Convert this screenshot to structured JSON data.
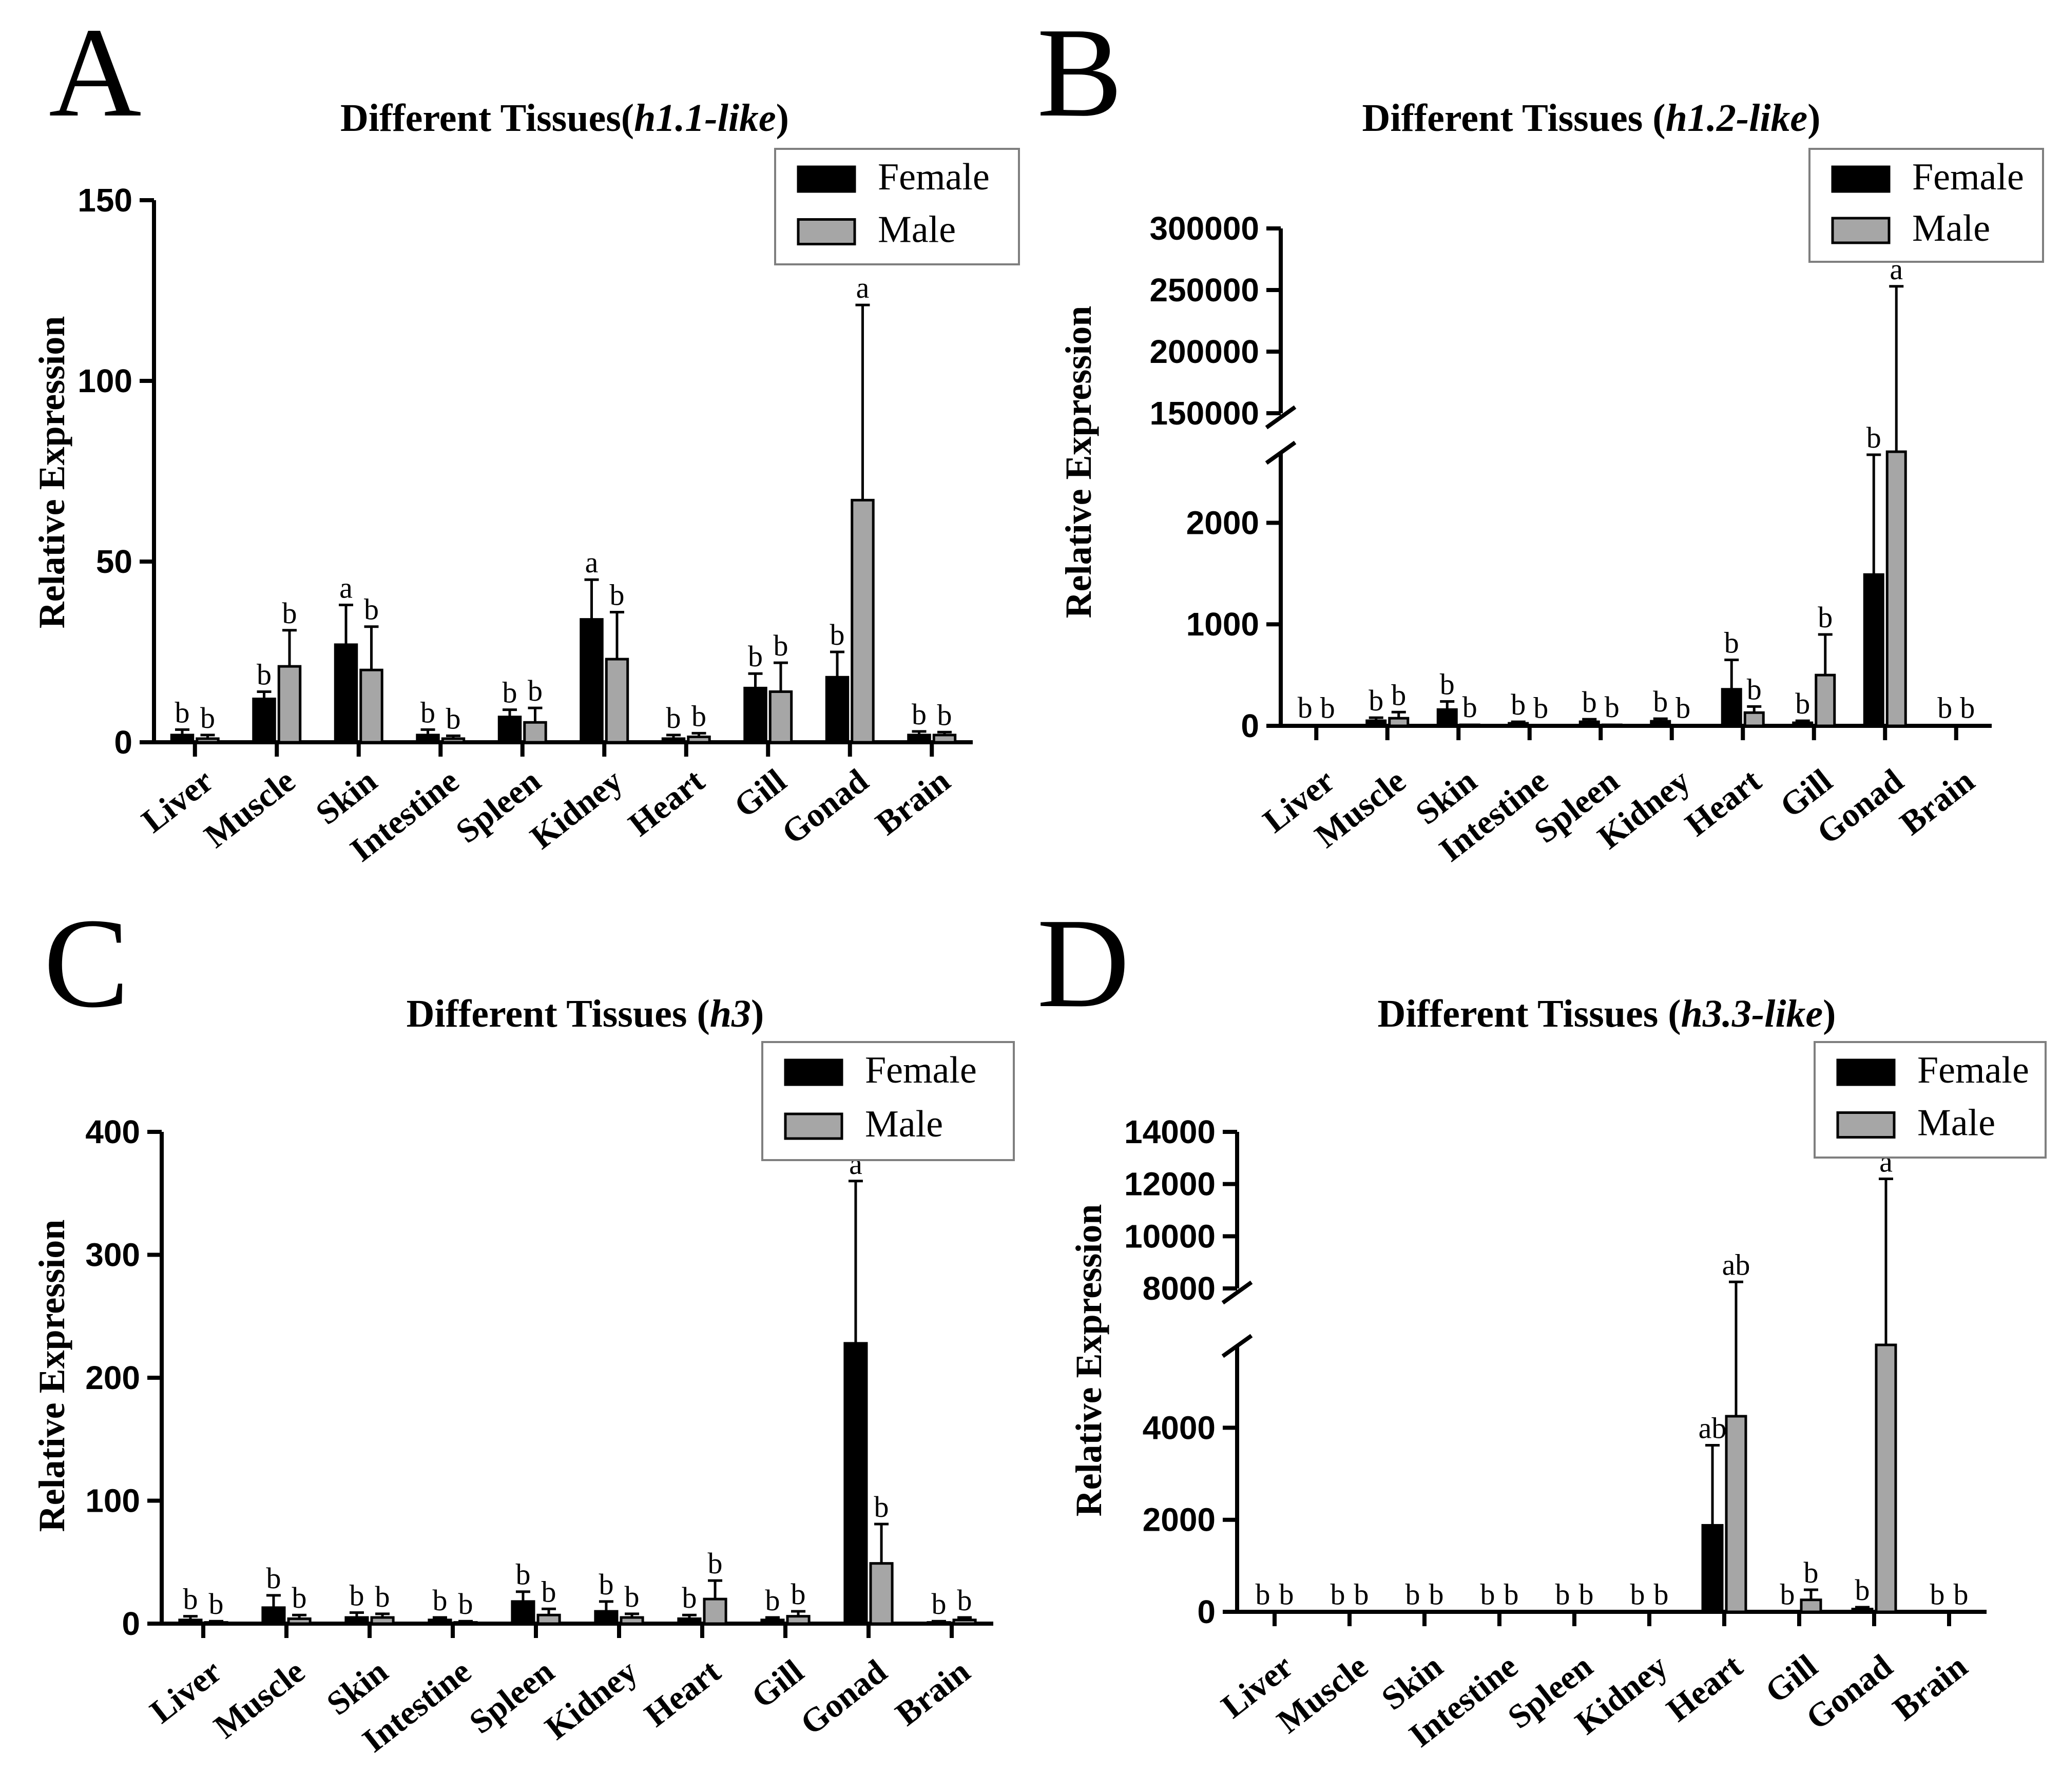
{
  "figure": {
    "categories": [
      "Liver",
      "Muscle",
      "Skin",
      "Intestine",
      "Spleen",
      "Kidney",
      "Heart",
      "Gill",
      "Gonad",
      "Brain"
    ],
    "legend": [
      "Female",
      "Male"
    ],
    "colors": {
      "female": "#000000",
      "male": "#a6a6a6",
      "axis": "#000000"
    },
    "ylabel": "Relative Expression"
  },
  "chart_data": [
    {
      "panel": "A",
      "type": "bar",
      "title_prefix": "Different Tissues(",
      "title_gene": "h1.1-like",
      "title_suffix": ")",
      "ylabel": "Relative Expression",
      "ylim": [
        0,
        150
      ],
      "yticks": [
        "0",
        "50",
        "100",
        "150"
      ],
      "categories": [
        "Liver",
        "Muscle",
        "Skin",
        "Intestine",
        "Spleen",
        "Kidney",
        "Heart",
        "Gill",
        "Gonad",
        "Brain"
      ],
      "series": [
        {
          "name": "Female",
          "values": [
            2,
            12,
            27,
            2,
            7,
            34,
            1,
            15,
            18,
            2
          ],
          "errors": [
            1.5,
            2,
            11,
            1.5,
            2,
            11,
            1,
            4,
            7,
            1
          ],
          "labels": [
            "b",
            "b",
            "a",
            "b",
            "b",
            "a",
            "b",
            "b",
            "b",
            "b"
          ]
        },
        {
          "name": "Male",
          "values": [
            1,
            21,
            20,
            1,
            5.5,
            23,
            1.5,
            14,
            67,
            2
          ],
          "errors": [
            1,
            10,
            12,
            0.8,
            4,
            13,
            1,
            8,
            54,
            0.8
          ],
          "labels": [
            "b",
            "b",
            "b",
            "b",
            "b",
            "b",
            "b",
            "b",
            "a",
            "b"
          ]
        }
      ],
      "legend_position": "top-right"
    },
    {
      "panel": "B",
      "type": "bar",
      "title_prefix": "Different Tissues (",
      "title_gene": "h1.2-like",
      "title_suffix": ")",
      "ylabel": "Relative Expression",
      "broken_axis": true,
      "ylim_lower": [
        0,
        2700
      ],
      "ylim_upper": [
        150000,
        300000
      ],
      "yticks_lower": [
        "0",
        "1000",
        "2000"
      ],
      "yticks_upper": [
        "150000",
        "200000",
        "250000",
        "300000"
      ],
      "categories": [
        "Liver",
        "Muscle",
        "Skin",
        "Intestine",
        "Spleen",
        "Kidney",
        "Heart",
        "Gill",
        "Gonad",
        "Brain"
      ],
      "series": [
        {
          "name": "Female",
          "values": [
            5,
            50,
            160,
            25,
            40,
            45,
            360,
            30,
            1490,
            5
          ],
          "errors": [
            5,
            30,
            80,
            15,
            25,
            25,
            290,
            20,
            1180,
            3
          ],
          "labels": [
            "b",
            "b",
            "b",
            "b",
            "b",
            "b",
            "b",
            "b",
            "b",
            "b"
          ]
        },
        {
          "name": "Male",
          "values": [
            5,
            75,
            10,
            5,
            10,
            5,
            130,
            500,
            120000,
            5
          ],
          "errors": [
            3,
            60,
            5,
            3,
            5,
            3,
            60,
            400,
            133000,
            3
          ],
          "labels": [
            "b",
            "b",
            "b",
            "b",
            "b",
            "b",
            "b",
            "b",
            "a",
            "b"
          ]
        }
      ],
      "legend_position": "top-right"
    },
    {
      "panel": "C",
      "type": "bar",
      "title_prefix": "Different Tissues (",
      "title_gene": "h3",
      "title_suffix": ")",
      "ylabel": "Relative Expression",
      "ylim": [
        0,
        400
      ],
      "yticks": [
        "0",
        "100",
        "200",
        "300",
        "400"
      ],
      "categories": [
        "Liver",
        "Muscle",
        "Skin",
        "Intestine",
        "Spleen",
        "Kidney",
        "Heart",
        "Gill",
        "Gonad",
        "Brain"
      ],
      "series": [
        {
          "name": "Female",
          "values": [
            3,
            13,
            5,
            3,
            18,
            10,
            4,
            3,
            228,
            1
          ],
          "errors": [
            3,
            10,
            4,
            2,
            8,
            8,
            3,
            2,
            132,
            1
          ],
          "labels": [
            "b",
            "b",
            "b",
            "b",
            "b",
            "b",
            "b",
            "b",
            "a",
            "b"
          ]
        },
        {
          "name": "Male",
          "values": [
            1,
            4,
            5,
            1,
            7,
            5,
            20,
            6,
            49,
            3
          ],
          "errors": [
            1,
            3,
            3,
            1,
            5,
            3,
            15,
            4,
            32,
            2
          ],
          "labels": [
            "b",
            "b",
            "b",
            "b",
            "b",
            "b",
            "b",
            "b",
            "b",
            "b"
          ]
        }
      ],
      "legend_position": "top-right"
    },
    {
      "panel": "D",
      "type": "bar",
      "title_prefix": "Different Tissues (",
      "title_gene": "h3.3-like",
      "title_suffix": ")",
      "ylabel": "Relative Expression",
      "broken_axis": true,
      "ylim_lower": [
        0,
        5800
      ],
      "ylim_upper": [
        8000,
        14000
      ],
      "yticks_lower": [
        "0",
        "2000",
        "4000"
      ],
      "yticks_upper": [
        "8000",
        "10000",
        "12000",
        "14000"
      ],
      "categories": [
        "Liver",
        "Muscle",
        "Skin",
        "Intestine",
        "Spleen",
        "Kidney",
        "Heart",
        "Gill",
        "Gonad",
        "Brain"
      ],
      "series": [
        {
          "name": "Female",
          "values": [
            5,
            5,
            5,
            5,
            5,
            5,
            1880,
            5,
            60,
            5
          ],
          "errors": [
            3,
            3,
            3,
            3,
            3,
            3,
            1740,
            3,
            40,
            3
          ],
          "labels": [
            "b",
            "b",
            "b",
            "b",
            "b",
            "b",
            "ab",
            "b",
            "b",
            "b"
          ]
        },
        {
          "name": "Male",
          "values": [
            5,
            5,
            5,
            5,
            5,
            5,
            4250,
            260,
            6500,
            5
          ],
          "errors": [
            3,
            3,
            3,
            3,
            3,
            3,
            4000,
            220,
            5700,
            3
          ],
          "labels": [
            "b",
            "b",
            "b",
            "b",
            "b",
            "b",
            "ab",
            "b",
            "a",
            "b"
          ]
        }
      ],
      "legend_position": "top-right"
    }
  ]
}
